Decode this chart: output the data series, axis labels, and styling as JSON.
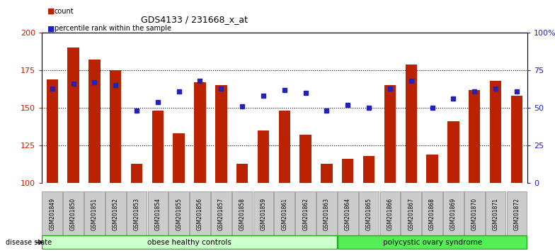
{
  "title": "GDS4133 / 231668_x_at",
  "samples": [
    "GSM201849",
    "GSM201850",
    "GSM201851",
    "GSM201852",
    "GSM201853",
    "GSM201854",
    "GSM201855",
    "GSM201856",
    "GSM201857",
    "GSM201858",
    "GSM201859",
    "GSM201861",
    "GSM201862",
    "GSM201863",
    "GSM201864",
    "GSM201865",
    "GSM201866",
    "GSM201867",
    "GSM201868",
    "GSM201869",
    "GSM201870",
    "GSM201871",
    "GSM201872"
  ],
  "bar_values": [
    169,
    190,
    182,
    175,
    113,
    148,
    133,
    167,
    165,
    113,
    135,
    148,
    132,
    113,
    116,
    118,
    165,
    179,
    119,
    141,
    162,
    168,
    158
  ],
  "blue_values": [
    63,
    66,
    67,
    65,
    48,
    54,
    61,
    68,
    63,
    51,
    58,
    62,
    60,
    48,
    52,
    50,
    63,
    68,
    50,
    56,
    61,
    63,
    61
  ],
  "group1_label": "obese healthy controls",
  "group2_label": "polycystic ovary syndrome",
  "group1_count": 14,
  "group2_count": 9,
  "ylim_left": [
    100,
    200
  ],
  "ylim_right": [
    0,
    100
  ],
  "yticks_left": [
    100,
    125,
    150,
    175,
    200
  ],
  "yticks_right": [
    0,
    25,
    50,
    75,
    100
  ],
  "bar_color": "#bb2200",
  "blue_color": "#2222bb",
  "group1_color": "#ccffcc",
  "group2_color": "#55ee55",
  "grid_color": "#000000",
  "bg_color": "#ffffff",
  "tick_bg": "#cccccc"
}
